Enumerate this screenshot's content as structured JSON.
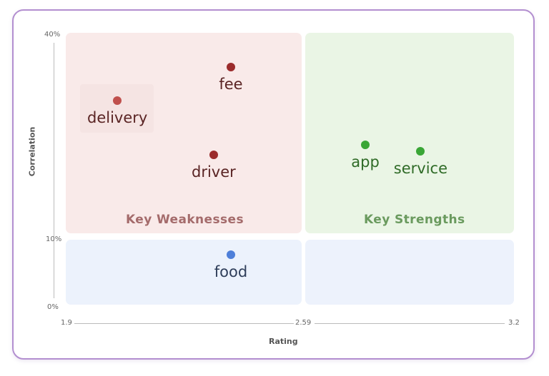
{
  "chart_data": {
    "type": "scatter",
    "title": "",
    "xlabel": "Rating",
    "ylabel": "Correlation",
    "xlim": [
      1.9,
      3.2
    ],
    "x_ticks": [
      "1.9",
      "2.59",
      "3.2"
    ],
    "y_ticks": [
      "0%",
      "10%",
      "40%"
    ],
    "quadrants": [
      "Key Weaknesses",
      "Key Strengths"
    ],
    "points": [
      {
        "label": "fee",
        "x": 2.38,
        "y": 35,
        "color": "#9b2c2c"
      },
      {
        "label": "delivery",
        "x": 2.05,
        "y": 30,
        "color": "#c0504d"
      },
      {
        "label": "driver",
        "x": 2.33,
        "y": 22,
        "color": "#9b2c2c"
      },
      {
        "label": "app",
        "x": 2.77,
        "y": 23.5,
        "color": "#3aa636"
      },
      {
        "label": "service",
        "x": 2.93,
        "y": 22.5,
        "color": "#3aa636"
      },
      {
        "label": "food",
        "x": 2.38,
        "y": 7.3,
        "color": "#4e7fd9"
      }
    ]
  },
  "colors": {
    "weak_text": "#a46b6b",
    "strong_text": "#6a9a5e",
    "weak_label": "#5a2424",
    "strong_label": "#2f6b27",
    "low_label": "#2f3e5a"
  }
}
